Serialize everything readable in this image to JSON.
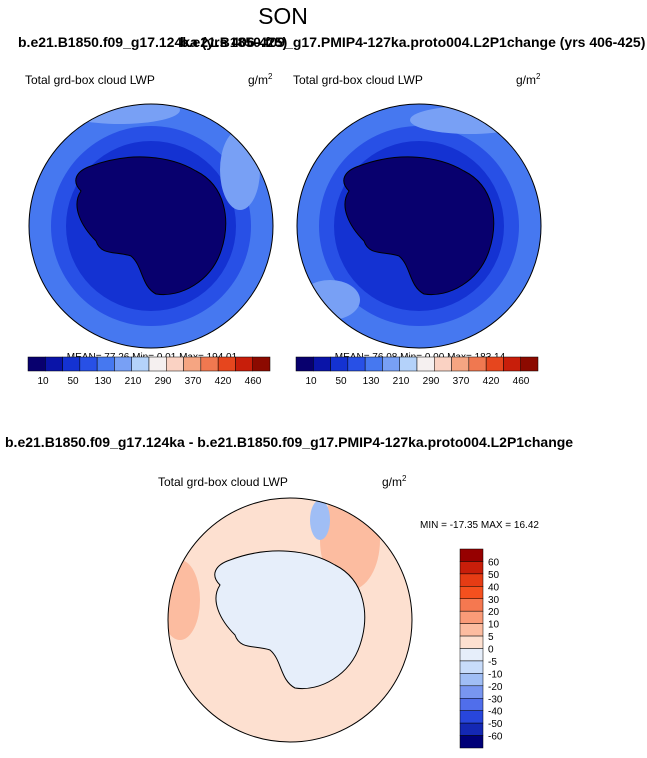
{
  "header": {
    "title": "SON",
    "left_case": "b.e21.B1850.f09_g17.124ka (yrs 406-425)",
    "right_case": "b.e21.B1850.f09_g17.PMIP4-127ka.proto004.L2P1change (yrs 406-425)"
  },
  "panels": [
    {
      "field": "Total grd-box cloud LWP",
      "units": "g/m",
      "units_sup": "2",
      "stats": "MEAN=  77.26  Min=  0.01  Max= 194.01"
    },
    {
      "field": "Total grd-box cloud LWP",
      "units": "g/m",
      "units_sup": "2",
      "stats": "MEAN=  76.08  Min=  0.00  Max= 183.14"
    }
  ],
  "colorbar": {
    "labels": [
      10,
      50,
      130,
      210,
      290,
      370,
      420,
      460
    ],
    "colors": [
      "#08006e",
      "#0a14a8",
      "#1432d2",
      "#2850e6",
      "#4678f0",
      "#78a0f5",
      "#b4d2fa",
      "#f5f0f0",
      "#fad2c3",
      "#f5a582",
      "#f07850",
      "#e6461e",
      "#c81e0a",
      "#8c0a00"
    ]
  },
  "difference": {
    "title": "b.e21.B1850.f09_g17.124ka - b.e21.B1850.f09_g17.PMIP4-127ka.proto004.L2P1change",
    "field": "Total grd-box cloud LWP",
    "units": "g/m",
    "units_sup": "2",
    "stats": "MIN = -17.35 MAX =  16.42",
    "colorbar": {
      "labels": [
        60,
        50,
        40,
        30,
        20,
        10,
        5,
        0,
        -5,
        -10,
        -20,
        -30,
        -40,
        -50,
        -60
      ],
      "colors": [
        "#960000",
        "#c81e0a",
        "#e63c14",
        "#f5501e",
        "#f57850",
        "#fa9b78",
        "#fcbca0",
        "#fde0d0",
        "#e6eefa",
        "#c8dcfa",
        "#a0bef5",
        "#7896f0",
        "#506eeb",
        "#2846dc",
        "#1428b4",
        "#000078"
      ]
    }
  }
}
